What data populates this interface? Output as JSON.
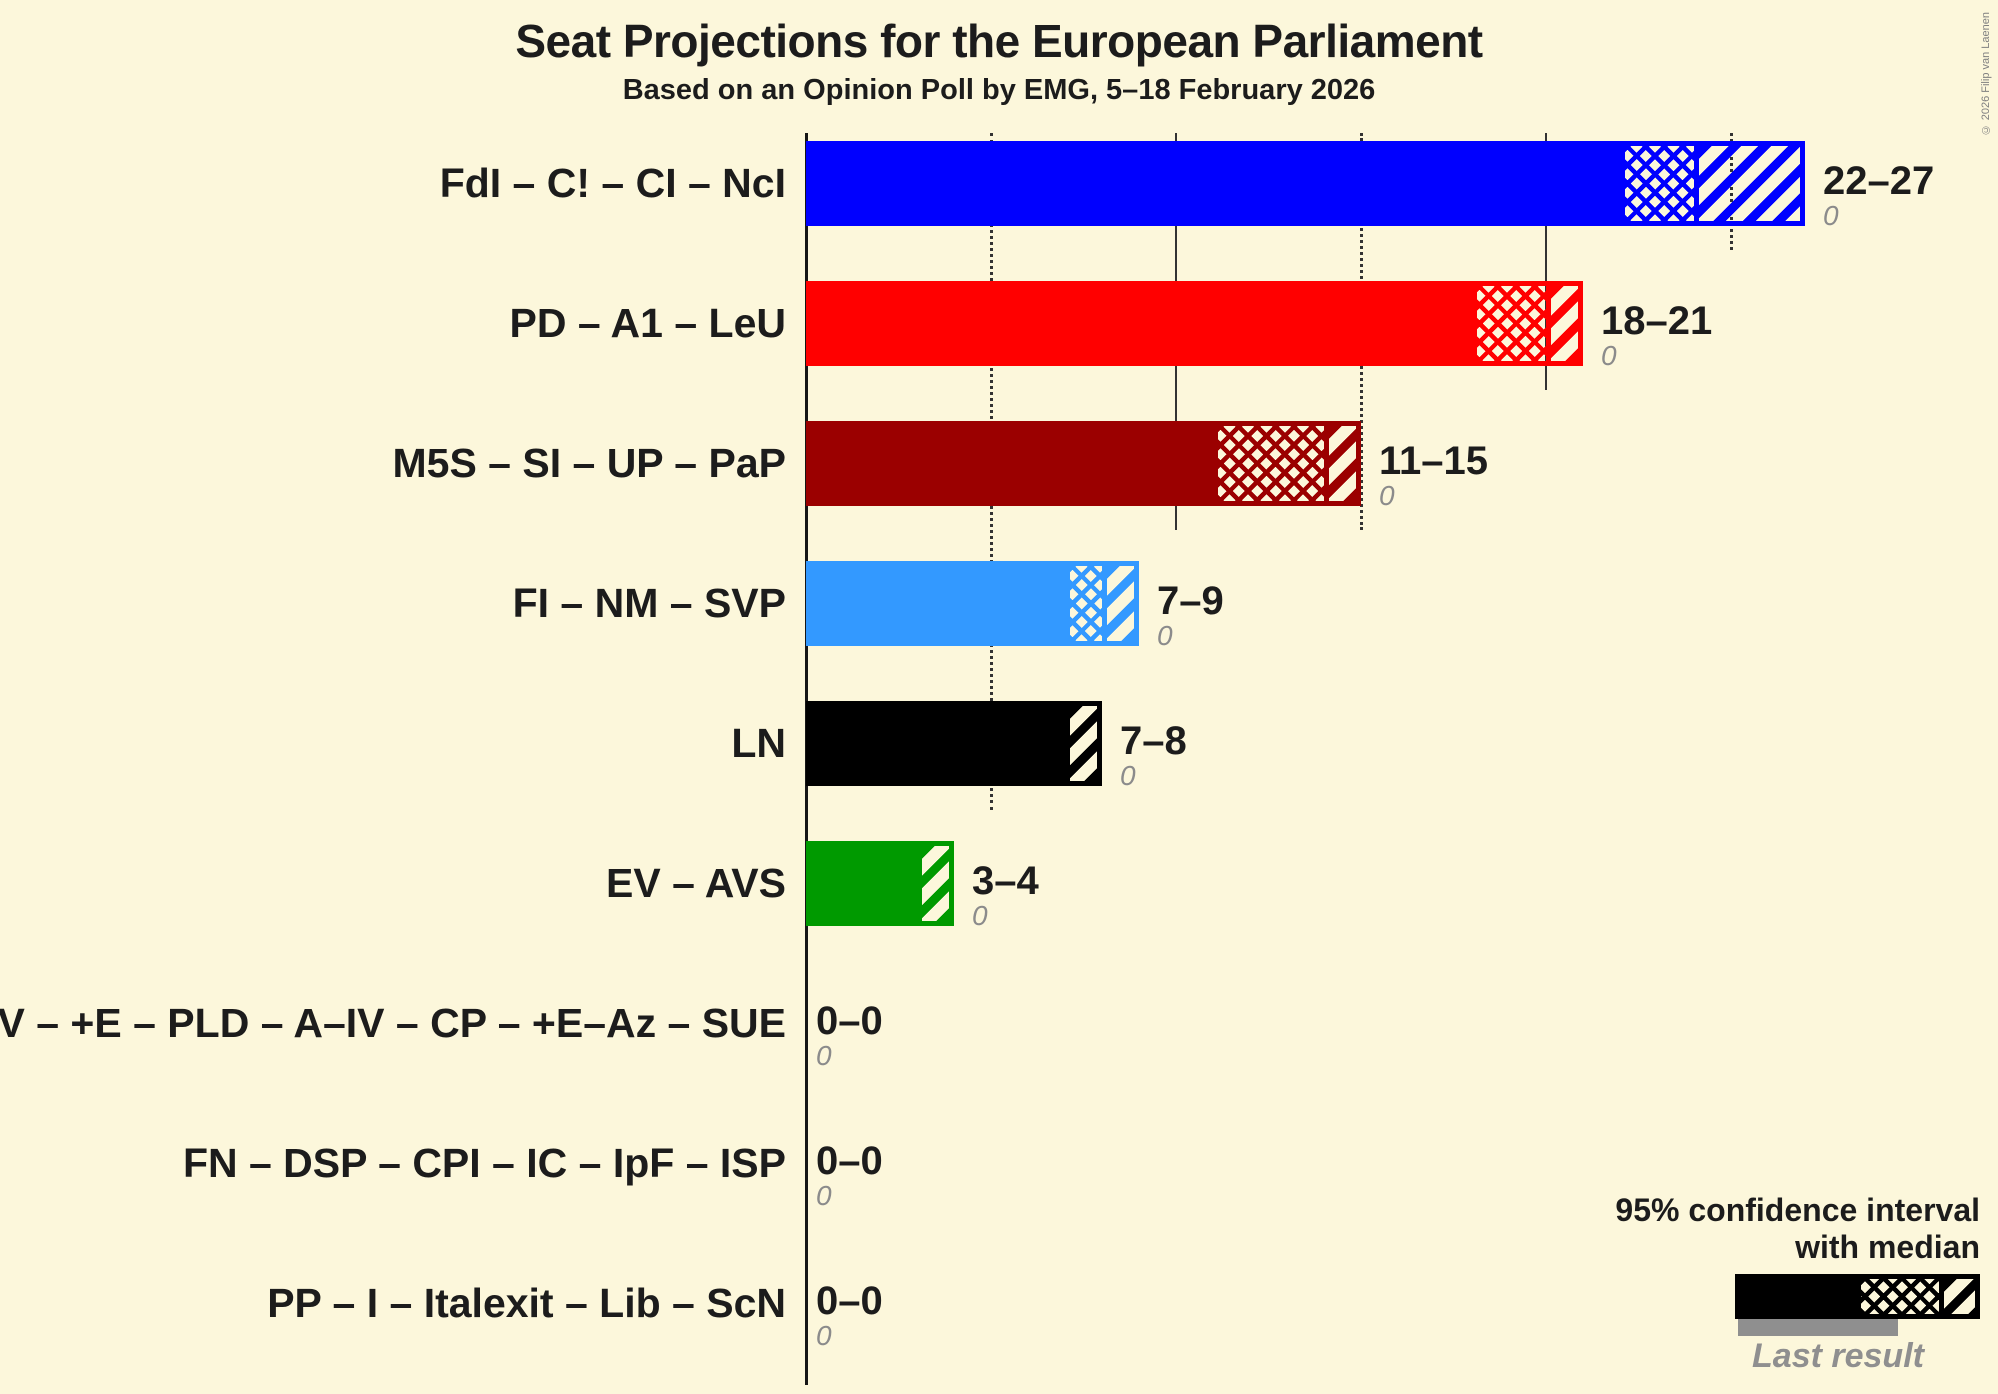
{
  "header": {
    "title": "Seat Projections for the European Parliament",
    "subtitle": "Based on an Opinion Poll by EMG, 5–18 February 2026"
  },
  "copyright": "© 2026 Filip van Laenen",
  "legend": {
    "ci_line1": "95% confidence interval",
    "ci_line2": "with median",
    "last_result_label": "Last result"
  },
  "colors": {
    "background": "#FCF7DB",
    "grid": "#333333",
    "text": "#1C1C1C",
    "muted": "#8B8B8B"
  },
  "chart_data": {
    "type": "bar",
    "orientation": "horizontal",
    "unit": "seats",
    "title": "Seat Projections for the European Parliament",
    "x_axis": {
      "min": 0,
      "max": 27,
      "gridlines": [
        {
          "value": 5,
          "style": "dotted"
        },
        {
          "value": 10,
          "style": "solid"
        },
        {
          "value": 15,
          "style": "dotted"
        },
        {
          "value": 20,
          "style": "solid"
        },
        {
          "value": 25,
          "style": "dotted"
        }
      ]
    },
    "series": [
      {
        "party": "FdI – C! – CI – NcI",
        "color": "#0000FF",
        "ci_low": 22,
        "median": 24,
        "ci_high": 27,
        "last_result": 0,
        "range_label": "22–27",
        "last_result_label": "0"
      },
      {
        "party": "PD – A1 – LeU",
        "color": "#FF0000",
        "ci_low": 18,
        "median": 20,
        "ci_high": 21,
        "last_result": 0,
        "range_label": "18–21",
        "last_result_label": "0"
      },
      {
        "party": "M5S – SI – UP – PaP",
        "color": "#9B0000",
        "ci_low": 11,
        "median": 14,
        "ci_high": 15,
        "last_result": 0,
        "range_label": "11–15",
        "last_result_label": "0"
      },
      {
        "party": "FI – NM – SVP",
        "color": "#3399FF",
        "ci_low": 7,
        "median": 8,
        "ci_high": 9,
        "last_result": 0,
        "range_label": "7–9",
        "last_result_label": "0"
      },
      {
        "party": "LN",
        "color": "#000000",
        "ci_low": 7,
        "median": 7,
        "ci_high": 8,
        "last_result": 0,
        "range_label": "7–8",
        "last_result_label": "0"
      },
      {
        "party": "EV – AVS",
        "color": "#009A00",
        "ci_low": 3,
        "median": 3,
        "ci_high": 4,
        "last_result": 0,
        "range_label": "3–4",
        "last_result_label": "0"
      },
      {
        "party": "A – IV – +E – PLD – A–IV – CP – +E–Az – SUE",
        "color": "#888888",
        "ci_low": 0,
        "median": 0,
        "ci_high": 0,
        "last_result": 0,
        "range_label": "0–0",
        "last_result_label": "0"
      },
      {
        "party": "FN – DSP – CPI – IC – IpF – ISP",
        "color": "#888888",
        "ci_low": 0,
        "median": 0,
        "ci_high": 0,
        "last_result": 0,
        "range_label": "0–0",
        "last_result_label": "0"
      },
      {
        "party": "PP – I – Italexit – Lib – ScN",
        "color": "#888888",
        "ci_low": 0,
        "median": 0,
        "ci_high": 0,
        "last_result": 0,
        "range_label": "0–0",
        "last_result_label": "0"
      }
    ]
  }
}
